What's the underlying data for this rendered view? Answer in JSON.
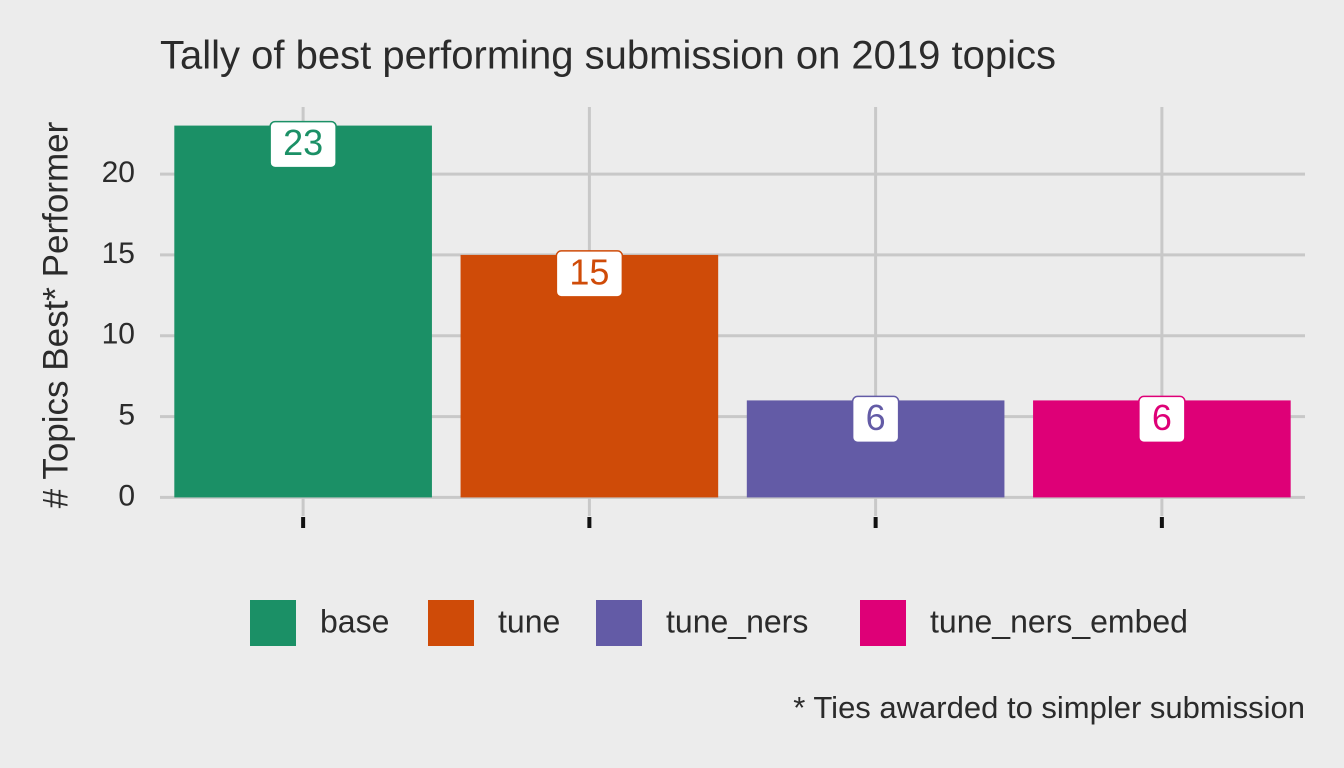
{
  "chart_data": {
    "type": "bar",
    "title": "Tally of best performing submission on 2019 topics",
    "y_label": "# Topics Best* Performer",
    "caption": "* Ties awarded to simpler submission",
    "categories": [
      "base",
      "tune",
      "tune_ners",
      "tune_ners_embed"
    ],
    "values": [
      23,
      15,
      6,
      6
    ],
    "colors": [
      "#1b9066",
      "#cf4b08",
      "#635ba6",
      "#de0077"
    ],
    "ylim": [
      -1.15,
      24.15
    ],
    "yticks": [
      0,
      5,
      10,
      15,
      20
    ],
    "grid": true,
    "legend": "bottom"
  }
}
